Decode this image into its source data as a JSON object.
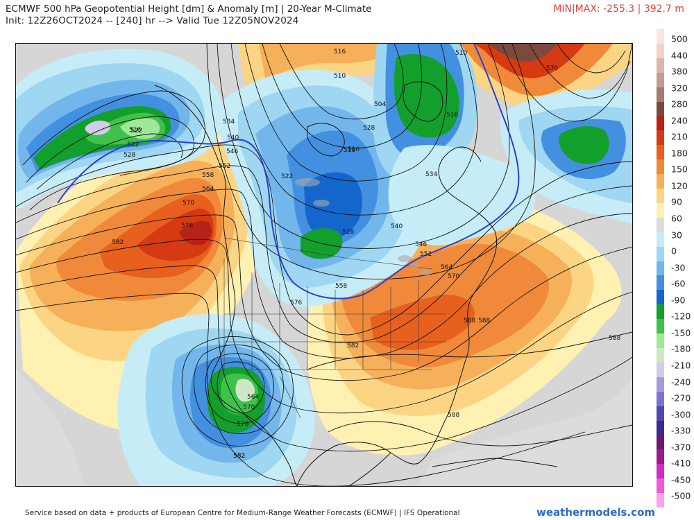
{
  "header": {
    "title": "ECMWF 500 hPa Geopotential Height [dm] & Anomaly [m] | 20-Year M-Climate",
    "init": "Init: 12Z26OCT2024 -- [240] hr --> Valid Tue 12Z05NOV2024",
    "minmax": "MIN|MAX: -255.3 | 392.7 m"
  },
  "colorbar": {
    "labels": [
      "500",
      "440",
      "380",
      "320",
      "280",
      "240",
      "210",
      "180",
      "150",
      "120",
      "90",
      "60",
      "30",
      "0",
      "-30",
      "-60",
      "-90",
      "-120",
      "-150",
      "-180",
      "-210",
      "-240",
      "-270",
      "-300",
      "-330",
      "-370",
      "-410",
      "-450",
      "-500"
    ],
    "colors": [
      "#fbe4e4",
      "#f3d2cc",
      "#ddb6ae",
      "#c59a90",
      "#a67a6e",
      "#7c4a3c",
      "#b52216",
      "#d63a12",
      "#e8601e",
      "#f08a3a",
      "#f6b05a",
      "#fcd584",
      "#fff1b2",
      "#dcdcdc",
      "#c6ecf8",
      "#9fd6f2",
      "#72b6ec",
      "#4490e0",
      "#1566cc",
      "#139f2c",
      "#3fc24a",
      "#9ee897",
      "#cde8c6",
      "#d2cce9",
      "#a59add",
      "#7b74cb",
      "#4e49b0",
      "#3a2a8e",
      "#6a1a6a",
      "#9e1690",
      "#d22ac2",
      "#f05ad8",
      "#f7a4ea"
    ]
  },
  "contours": {
    "labels": [
      "516",
      "510",
      "504",
      "510",
      "516",
      "522",
      "528",
      "534",
      "540",
      "546",
      "552",
      "558",
      "564",
      "570",
      "576",
      "582",
      "516",
      "522",
      "528",
      "534",
      "540",
      "546",
      "552",
      "558",
      "564",
      "570",
      "576",
      "582",
      "588",
      "588",
      "588",
      "582",
      "564",
      "570",
      "576",
      "582",
      "528",
      "522",
      "516",
      "510",
      "570",
      "588"
    ]
  },
  "footer": {
    "credit": "Service based on data + products of European Centre for Medium-Range Weather Forecasts (ECMWF) | IFS Operational",
    "brand": "weathermodels.com"
  },
  "map_layers": [
    "anomaly-fill",
    "height-contours",
    "coastlines",
    "borders",
    "lakes"
  ]
}
